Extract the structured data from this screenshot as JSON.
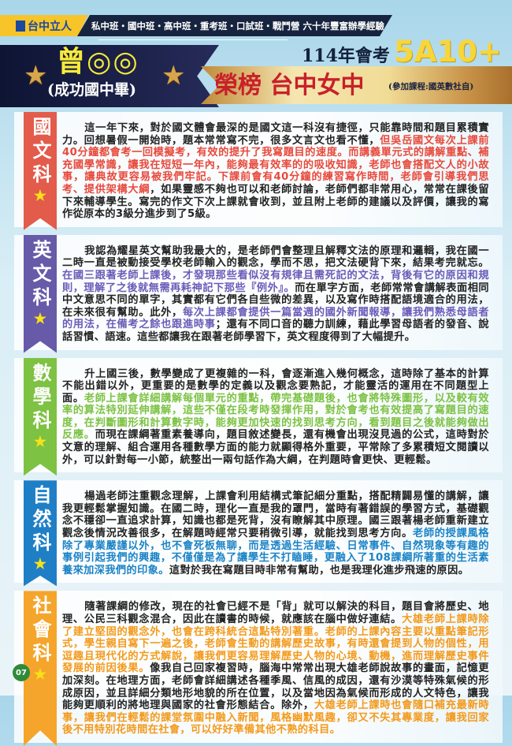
{
  "header": {
    "logo_text": "台中立人",
    "tagline": "私中班・國中班・高中班・重考班・口試班・戰鬥營  六十年豐富辦學經驗",
    "student_name": "曾◎◎",
    "student_school": "(成功國中畢)",
    "exam": "114年會考",
    "score": "5A10+",
    "result": "榮榜 台中女中",
    "courses": "(參加課程:國英數社自)"
  },
  "colors": {
    "chinese": "#e35b4b",
    "english": "#675aa8",
    "math": "#7dc242",
    "science": "#1f7fc6",
    "social": "#f5a52b",
    "accent_yellow": "#f7d63a",
    "navy": "#17243f"
  },
  "subjects": [
    {
      "label": "國文科",
      "color": "#e35b4b",
      "highlight": "#e8493c",
      "segments": [
        {
          "text": "這一年下來，對於國文體會最深的是國文這一科沒有捷徑，只能靠時間和題目累積實力。回想暑假一開始時，題本常常寫不完，很多文言文也看不懂，",
          "hl": false
        },
        {
          "text": "但吳岳國文每次上課前40分鐘都會考一回模擬考，有效的提升了我寫題目的速度。而講義單元式的講解重點、補充國學常識，讓我在短短一年內，能夠最有效率的的吸收知識，老師也會搭配文人的小故事，讓典故更容易被我們牢記。下課前會有40分鐘的練習寫作時間，老師會引導我們思考、提供架構大綱",
          "hl": true
        },
        {
          "text": "，如果靈感不夠也可以和老師討論，老師們都非常用心，常常在課後留下來輔導學生。寫完的作文下次上課就會收到，並且附上老師的建議以及評價，讓我的寫作從原本的3級分進步到了5級。",
          "hl": false
        }
      ]
    },
    {
      "label": "英文科",
      "color": "#675aa8",
      "highlight": "#6b5bb8",
      "segments": [
        {
          "text": "我認為耀星英文幫助我最大的，是老師們會整理且解釋文法的原理和邏輯，我在國一二時一直是被動接受學校老師輸入的觀念，學而不思，把文法硬背下來，結果考完就忘。",
          "hl": false
        },
        {
          "text": "在國三跟著老師上課後，才發現那些看似沒有規律且需死記的文法，背後有它的原因和規則，理解了之後就無需再耗神記下那些『例外』。",
          "hl": true
        },
        {
          "text": "而在單字方面，老師常常會講解表面相同中文意思不同的單字，其實都有它們各自些微的差異，以及寫作時搭配語境適合的用法，在未來很有幫助。此外，",
          "hl": false
        },
        {
          "text": "每次上課都會提供一篇當週的國外新聞報導，讓我們熟悉母語者的用法，在備考之餘也跟進時事",
          "hl": true
        },
        {
          "text": "；還有不同口音的聽力訓練，藉此學習母語者的發音、說話習慣、語速。這些都讓我在跟著老師學習下，英文程度得到了大幅提升。",
          "hl": false
        }
      ]
    },
    {
      "label": "數學科",
      "color": "#7dc242",
      "highlight": "#7cc242",
      "segments": [
        {
          "text": "升上國三後，數學變成了更複雜的一科，會逐漸進入幾何概念，這時除了基本的計算不能出錯以外，更重要的是數學的定義以及觀念要熟記，才能靈活的運用在不同題型上面。",
          "hl": false
        },
        {
          "text": "老師上課會詳細講解每個單元的重點，帶完基礎題後，也會將特殊圖形，以及較有效率的算法特別延伸講解，這些不僅在段考時發揮作用，對於會考也有效提高了寫題目的速度，在判斷圖形和計算數字時，能夠更加快速的找到思考方向，看到題目之後就能夠做出反應。",
          "hl": true
        },
        {
          "text": "而現在課綱著重素養導向，題目敘述變長，還有機會出現沒見過的公式，這時對於文意的理解、組合運用各種數學方面的能力就顯得格外重要，平常除了多累積短文閱讀以外，可以針對每一小節，統整出一兩句話作為大綱，在判題時會更快、更輕鬆。",
          "hl": false
        }
      ]
    },
    {
      "label": "自然科",
      "color": "#1f7fc6",
      "highlight": "#1a83c6",
      "segments": [
        {
          "text": "楊過老師注重觀念理解，上課會利用結構式筆記細分重點，搭配精闢易懂的講解，讓我更輕鬆掌握知識。在國二時，理化一直是我的罩門，當時有著錯誤的學習方式，基礎觀念不穩卻一直追求計算，知識也都是死背，沒有瞭解其中原理。國三跟著楊老師重新建立觀念後情況改善很多，在解題時經常只要稍微引導，就能找到思考方向。",
          "hl": false
        },
        {
          "text": "老師的授課風格除了專業嚴謹以外，也不會死板無聊，而是透過生活經驗、日常事件、自然現象等有趣的事例引起我們的興趣，不僅僅是為了讓學生不打瞌睡，更融入了108課綱所著重的生活素養來加深我們的印象。",
          "hl": true
        },
        {
          "text": "這對於我在寫題目時非常有幫助，也是我理化進步飛速的原因。",
          "hl": false
        }
      ]
    },
    {
      "label": "社會科",
      "color": "#f5a52b",
      "highlight": "#f39a1c",
      "segments": [
        {
          "text": "隨著課綱的修改，現在的社會已經不是「背」就可以解決的科目，題目會將歷史、地理、公民三科觀念混合，因此在讀書的時候，就應該在腦中做好連結。",
          "hl": false
        },
        {
          "text": "大雄老師上課時除了建立堅固的觀念外，也會在跨科統合這點特別著重。老師的上課內容主要以重點筆記形式，學生親自寫下一遍之後，老師會生動的講解歷史故事，有時還會提到人物的個性，用逗趣且現代化的方式解說，讓我們更容易理解歷史人物的心境、動機，進而理解歷史事件發展的前因後果。",
          "hl": true
        },
        {
          "text": "像我自己回家複習時，腦海中常常出現大雄老師說故事的畫面，記憶更加深刻。在地理方面，老師會詳細講述各種季風、信風的成因，還有沙漠等特殊氣候的形成原因，並且詳細分類地形地貌的所在位置，以及當地因為氣候而形成的人文特色，讓我能夠更順利的將地理與國家的社會形態結合。除外，",
          "hl": false
        },
        {
          "text": "大雄老師上課時也會隨口補充最新時事，讓我們在輕鬆的課堂氛圍中融入新聞，風格幽默風趣，卻又不失其專業度，讓我回家後不用特別花時間在社會，可以好好準備其他不熟的科目。",
          "hl": true
        }
      ]
    }
  ],
  "page_number": "07"
}
